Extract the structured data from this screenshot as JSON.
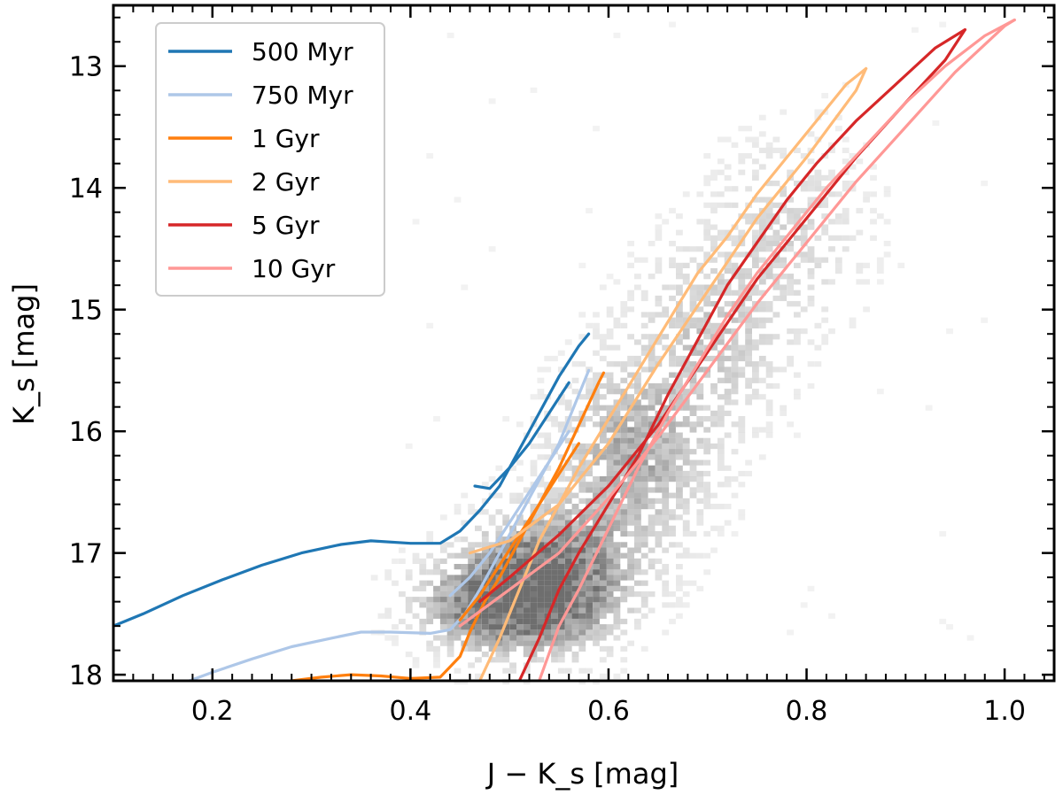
{
  "chart_data": {
    "type": "line",
    "title": "",
    "xlabel": "J − K_s [mag]",
    "ylabel": "K_s [mag]",
    "xlim": [
      0.1,
      1.05
    ],
    "ylim": [
      18.05,
      12.5
    ],
    "y_inverted": true,
    "grid": false,
    "legend_position": "top-left",
    "x_ticks": [
      0.2,
      0.4,
      0.6,
      0.8,
      1.0
    ],
    "x_tick_labels": [
      "0.2",
      "0.4",
      "0.6",
      "0.8",
      "1.0"
    ],
    "y_ticks": [
      13,
      14,
      15,
      16,
      17,
      18
    ],
    "y_tick_labels": [
      "13",
      "14",
      "15",
      "16",
      "17",
      "18"
    ],
    "background_density": {
      "description": "grey 2D histogram of observed sources",
      "color": "#555555",
      "peaks": [
        {
          "x": 0.54,
          "y": 17.2,
          "amplitude": 1.0,
          "sx": 0.05,
          "sy": 0.35
        },
        {
          "x": 0.48,
          "y": 17.4,
          "amplitude": 0.8,
          "sx": 0.05,
          "sy": 0.25
        },
        {
          "x": 0.62,
          "y": 16.2,
          "amplitude": 0.55,
          "sx": 0.05,
          "sy": 0.5
        },
        {
          "x": 0.7,
          "y": 15.2,
          "amplitude": 0.35,
          "sx": 0.05,
          "sy": 0.5
        },
        {
          "x": 0.78,
          "y": 14.3,
          "amplitude": 0.25,
          "sx": 0.05,
          "sy": 0.5
        }
      ]
    },
    "series": [
      {
        "name": "500 Myr",
        "color": "#1f77b4",
        "x": [
          0.1,
          0.13,
          0.17,
          0.21,
          0.25,
          0.29,
          0.33,
          0.36,
          0.4,
          0.43,
          0.45,
          0.47,
          0.49,
          0.51,
          0.53,
          0.55,
          0.57,
          0.58
        ],
        "y": [
          17.6,
          17.5,
          17.35,
          17.22,
          17.1,
          17.0,
          16.93,
          16.9,
          16.92,
          16.92,
          16.82,
          16.65,
          16.45,
          16.15,
          15.85,
          15.55,
          15.3,
          15.2
        ],
        "x2": [
          0.465,
          0.48,
          0.5,
          0.52,
          0.54,
          0.56
        ],
        "y2": [
          16.45,
          16.47,
          16.3,
          16.1,
          15.85,
          15.6
        ]
      },
      {
        "name": "750 Myr",
        "color": "#aec7e8",
        "x": [
          0.16,
          0.2,
          0.24,
          0.28,
          0.32,
          0.35,
          0.38,
          0.42,
          0.44,
          0.455,
          0.47,
          0.49,
          0.51,
          0.53,
          0.55,
          0.57,
          0.58
        ],
        "y": [
          18.1,
          17.98,
          17.87,
          17.77,
          17.7,
          17.65,
          17.65,
          17.66,
          17.63,
          17.5,
          17.3,
          17.0,
          16.7,
          16.4,
          16.1,
          15.7,
          15.5
        ],
        "x2": [
          0.44,
          0.46,
          0.48,
          0.5,
          0.52,
          0.54,
          0.56
        ],
        "y2": [
          17.35,
          17.2,
          17.0,
          16.75,
          16.5,
          16.25,
          16.0
        ]
      },
      {
        "name": "1 Gyr",
        "color": "#ff7f0e",
        "x": [
          0.28,
          0.31,
          0.34,
          0.37,
          0.4,
          0.43,
          0.45,
          0.46,
          0.475,
          0.49,
          0.51,
          0.53,
          0.55,
          0.57,
          0.59,
          0.595
        ],
        "y": [
          18.05,
          18.02,
          18.0,
          18.01,
          18.03,
          18.02,
          17.85,
          17.65,
          17.4,
          17.2,
          16.9,
          16.6,
          16.3,
          15.95,
          15.6,
          15.52
        ],
        "x2": [
          0.45,
          0.47,
          0.49,
          0.51,
          0.53,
          0.55,
          0.57
        ],
        "y2": [
          17.55,
          17.35,
          17.1,
          16.85,
          16.6,
          16.35,
          16.1
        ]
      },
      {
        "name": "2 Gyr",
        "color": "#ffbb78",
        "x": [
          0.47,
          0.49,
          0.51,
          0.53,
          0.55,
          0.57,
          0.6,
          0.63,
          0.66,
          0.69,
          0.72,
          0.75,
          0.78,
          0.81,
          0.84,
          0.86
        ],
        "y": [
          18.05,
          17.7,
          17.3,
          16.9,
          16.6,
          16.3,
          15.9,
          15.5,
          15.1,
          14.7,
          14.4,
          14.05,
          13.75,
          13.45,
          13.15,
          13.02
        ],
        "x2": [
          0.46,
          0.5,
          0.55,
          0.6,
          0.65,
          0.7,
          0.75,
          0.8,
          0.85,
          0.86
        ],
        "y2": [
          17.0,
          16.9,
          16.6,
          16.1,
          15.45,
          14.85,
          14.25,
          13.75,
          13.2,
          13.02
        ]
      },
      {
        "name": "5 Gyr",
        "color": "#d62728",
        "x": [
          0.51,
          0.53,
          0.55,
          0.57,
          0.6,
          0.63,
          0.66,
          0.69,
          0.72,
          0.75,
          0.78,
          0.81,
          0.85,
          0.89,
          0.93,
          0.96
        ],
        "y": [
          18.05,
          17.7,
          17.3,
          17.0,
          16.6,
          16.2,
          15.7,
          15.25,
          14.8,
          14.45,
          14.1,
          13.8,
          13.45,
          13.15,
          12.85,
          12.7
        ],
        "x2": [
          0.47,
          0.5,
          0.55,
          0.6,
          0.65,
          0.7,
          0.75,
          0.8,
          0.85,
          0.9,
          0.94,
          0.96
        ],
        "y2": [
          17.4,
          17.2,
          16.85,
          16.45,
          15.95,
          15.35,
          14.75,
          14.25,
          13.75,
          13.3,
          12.95,
          12.7
        ]
      },
      {
        "name": "10 Gyr",
        "color": "#ff9896",
        "x": [
          0.53,
          0.55,
          0.57,
          0.6,
          0.63,
          0.66,
          0.69,
          0.72,
          0.75,
          0.78,
          0.82,
          0.86,
          0.9,
          0.94,
          0.98,
          1.01
        ],
        "y": [
          18.05,
          17.6,
          17.3,
          16.8,
          16.3,
          15.85,
          15.45,
          15.05,
          14.7,
          14.4,
          14.0,
          13.65,
          13.3,
          13.0,
          12.75,
          12.62
        ],
        "x2": [
          0.45,
          0.5,
          0.55,
          0.6,
          0.65,
          0.7,
          0.75,
          0.8,
          0.85,
          0.9,
          0.95,
          1.0,
          1.01
        ],
        "y2": [
          17.6,
          17.3,
          17.0,
          16.55,
          16.05,
          15.5,
          14.95,
          14.45,
          13.95,
          13.5,
          13.05,
          12.67,
          12.62
        ]
      }
    ]
  }
}
